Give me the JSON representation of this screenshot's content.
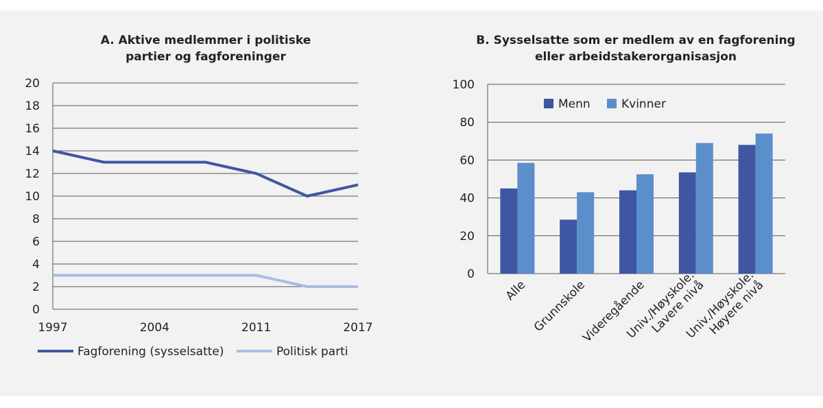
{
  "chart_data": [
    {
      "type": "line",
      "title": [
        "A. Aktive medlemmer i politiske",
        "partier og fagforeninger"
      ],
      "x": [
        1997,
        2000,
        2004,
        2007,
        2011,
        2014,
        2017
      ],
      "x_tick_labels": [
        "1997",
        "2004",
        "2011",
        "2017"
      ],
      "ylim": [
        0,
        20
      ],
      "y_ticks": [
        0,
        2,
        4,
        6,
        8,
        10,
        12,
        14,
        16,
        18,
        20
      ],
      "grid": true,
      "legend": "bottom",
      "series": [
        {
          "name": "Fagforening (sysselsatte)",
          "values": [
            14,
            13,
            13,
            13,
            12,
            10,
            11
          ],
          "color": "#3f56a3"
        },
        {
          "name": "Politisk parti",
          "values": [
            3,
            3,
            3,
            3,
            3,
            2,
            2
          ],
          "color": "#a7bde3"
        }
      ]
    },
    {
      "type": "bar",
      "title": [
        "B. Sysselsatte som er medlem av en fagforening",
        "eller arbeidstakerorganisasjon"
      ],
      "categories": [
        [
          "Alle"
        ],
        [
          "Grunnskole"
        ],
        [
          "Videregående"
        ],
        [
          "Univ./Høyskole.",
          "Lavere nivå"
        ],
        [
          "Univ./Høyskole.",
          "Høyere nivå"
        ]
      ],
      "ylim": [
        0,
        100
      ],
      "y_ticks": [
        0,
        20,
        40,
        60,
        80,
        100
      ],
      "grid": true,
      "legend": "top",
      "series": [
        {
          "name": "Menn",
          "values": [
            45,
            28.5,
            44,
            53.5,
            68
          ],
          "color": "#3f56a3"
        },
        {
          "name": "Kvinner",
          "values": [
            58.5,
            43,
            52.5,
            69,
            74
          ],
          "color": "#5b8fcb"
        }
      ]
    }
  ]
}
